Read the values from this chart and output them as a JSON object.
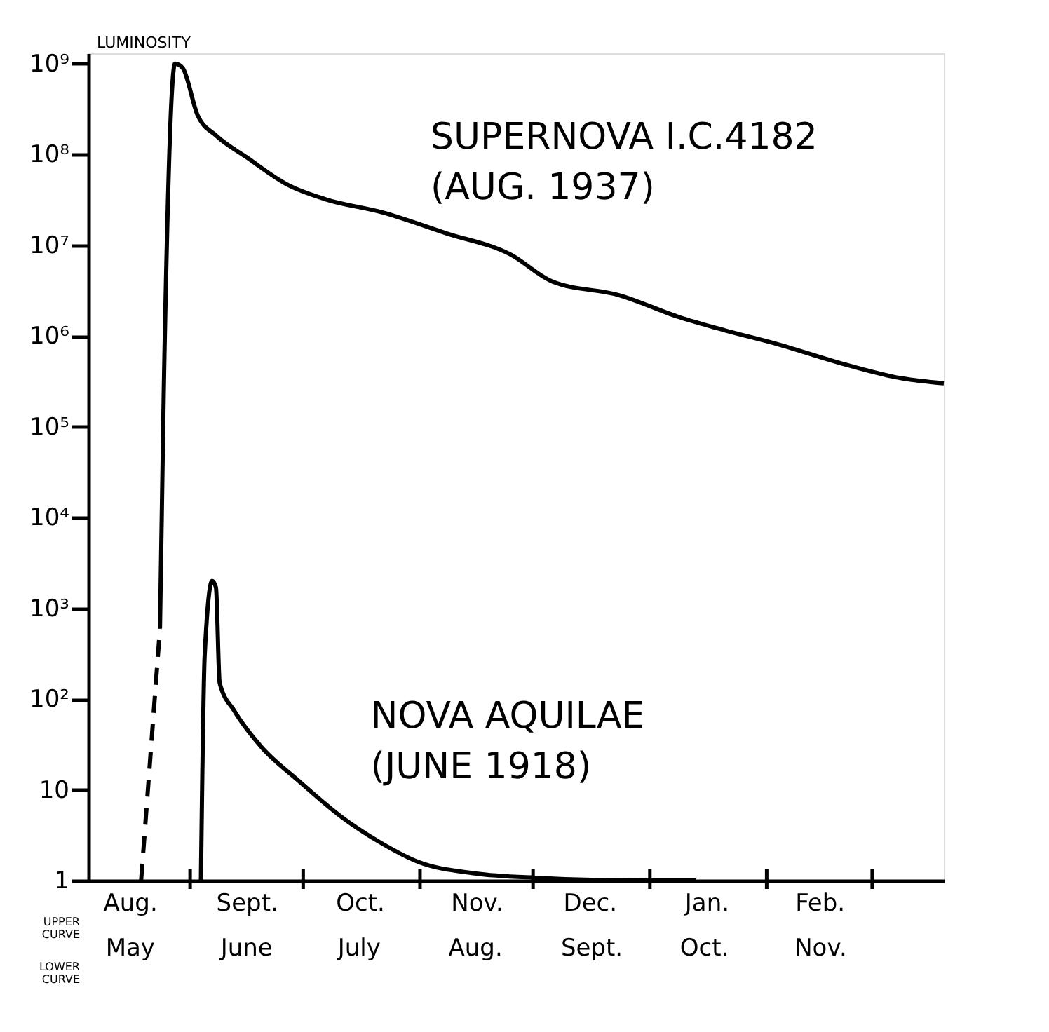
{
  "chart_data": {
    "type": "line",
    "ylabel": "LUMINOSITY",
    "log": "y",
    "ylim": [
      1,
      1300000000
    ],
    "yticks": [
      {
        "value": 1,
        "label": "1"
      },
      {
        "value": 10,
        "label": "10"
      },
      {
        "value": 100,
        "label": "10²"
      },
      {
        "value": 1000,
        "label": "10³"
      },
      {
        "value": 10000,
        "label": "10⁴"
      },
      {
        "value": 100000,
        "label": "10⁵"
      },
      {
        "value": 1000000,
        "label": "10⁶"
      },
      {
        "value": 10000000,
        "label": "10⁷"
      },
      {
        "value": 100000000,
        "label": "10⁸"
      },
      {
        "value": 1000000000,
        "label": "10⁹"
      }
    ],
    "xlim": [
      "1937-08-05",
      "1938-03-20"
    ],
    "xticks": [
      {
        "value": "1937-09-01",
        "label": null
      },
      {
        "value": "1937-10-01",
        "label": null
      },
      {
        "value": "1937-11-01",
        "label": null
      },
      {
        "value": "1937-12-01",
        "label": null
      },
      {
        "value": "1938-01-01",
        "label": null
      },
      {
        "value": "1938-02-01",
        "label": null
      },
      {
        "value": "1938-03-01",
        "label": null
      },
      {
        "value": "1937-08-16",
        "label": "Aug."
      },
      {
        "value": "1937-09-16",
        "label": "Sept."
      },
      {
        "value": "1937-10-16",
        "label": "Oct."
      },
      {
        "value": "1937-11-16",
        "label": "Nov."
      },
      {
        "value": "1937-12-16",
        "label": "Dec."
      },
      {
        "value": "1938-01-16",
        "label": "Jan."
      },
      {
        "value": "1938-02-15",
        "label": "Feb."
      }
    ],
    "x2lim": [
      "1918-05-05",
      "1918-12-19"
    ],
    "x2ticks": [
      {
        "value": "1918-05-16",
        "label": "May"
      },
      {
        "value": "1918-06-16",
        "label": "June"
      },
      {
        "value": "1918-07-16",
        "label": "July"
      },
      {
        "value": "1918-08-16",
        "label": "Aug."
      },
      {
        "value": "1918-09-16",
        "label": "Sept."
      },
      {
        "value": "1918-10-16",
        "label": "Oct."
      },
      {
        "value": "1918-11-16",
        "label": "Nov."
      }
    ],
    "annotations": [
      "UPPER CURVE",
      "LOWER CURVE"
    ],
    "grid": false,
    "series": [
      {
        "color": "#000000",
        "line_style": "dashed",
        "x": [
          "1937-08-19",
          "1937-08-24"
        ],
        "values": [
          1,
          600
        ]
      },
      {
        "name": "SUPERNOVA I.C.4182 (AUG. 1937)",
        "color": "#000000",
        "line_style": "solid",
        "x": [
          "1937-08-24",
          "1937-08-25",
          "1937-08-28",
          "1937-08-30",
          "1937-09-03",
          "1937-09-08",
          "1937-09-16",
          "1937-09-27",
          "1937-10-07",
          "1937-10-22",
          "1937-11-08",
          "1937-11-25",
          "1937-12-06",
          "1937-12-24",
          "1938-01-09",
          "1938-01-21",
          "1938-02-04",
          "1938-02-20",
          "1938-03-09",
          "1938-03-20"
        ],
        "values": [
          600,
          230000,
          1000000000,
          900000000,
          270000000,
          160000000,
          93000000,
          46000000,
          32000000,
          23000000,
          13500000,
          7900000,
          4000000,
          2800000,
          1600000,
          1150000,
          810000,
          510000,
          340000,
          300000
        ]
      },
      {
        "name": "NOVA AQUILAE (JUNE 1918)",
        "color": "#000000",
        "line_style": "solid",
        "axis": "x2",
        "x": [
          "1918-06-04",
          "1918-06-05",
          "1918-06-07",
          "1918-06-08",
          "1918-06-09",
          "1918-06-13",
          "1918-06-20",
          "1918-06-30",
          "1918-07-11",
          "1918-07-22",
          "1918-08-01",
          "1918-08-16",
          "1918-09-02",
          "1918-09-30",
          "1918-10-14"
        ],
        "values": [
          1,
          300,
          2000,
          1700,
          150,
          73,
          30,
          12.6,
          5.2,
          2.6,
          1.6,
          1.2,
          1.07,
          1,
          1
        ]
      }
    ]
  }
}
